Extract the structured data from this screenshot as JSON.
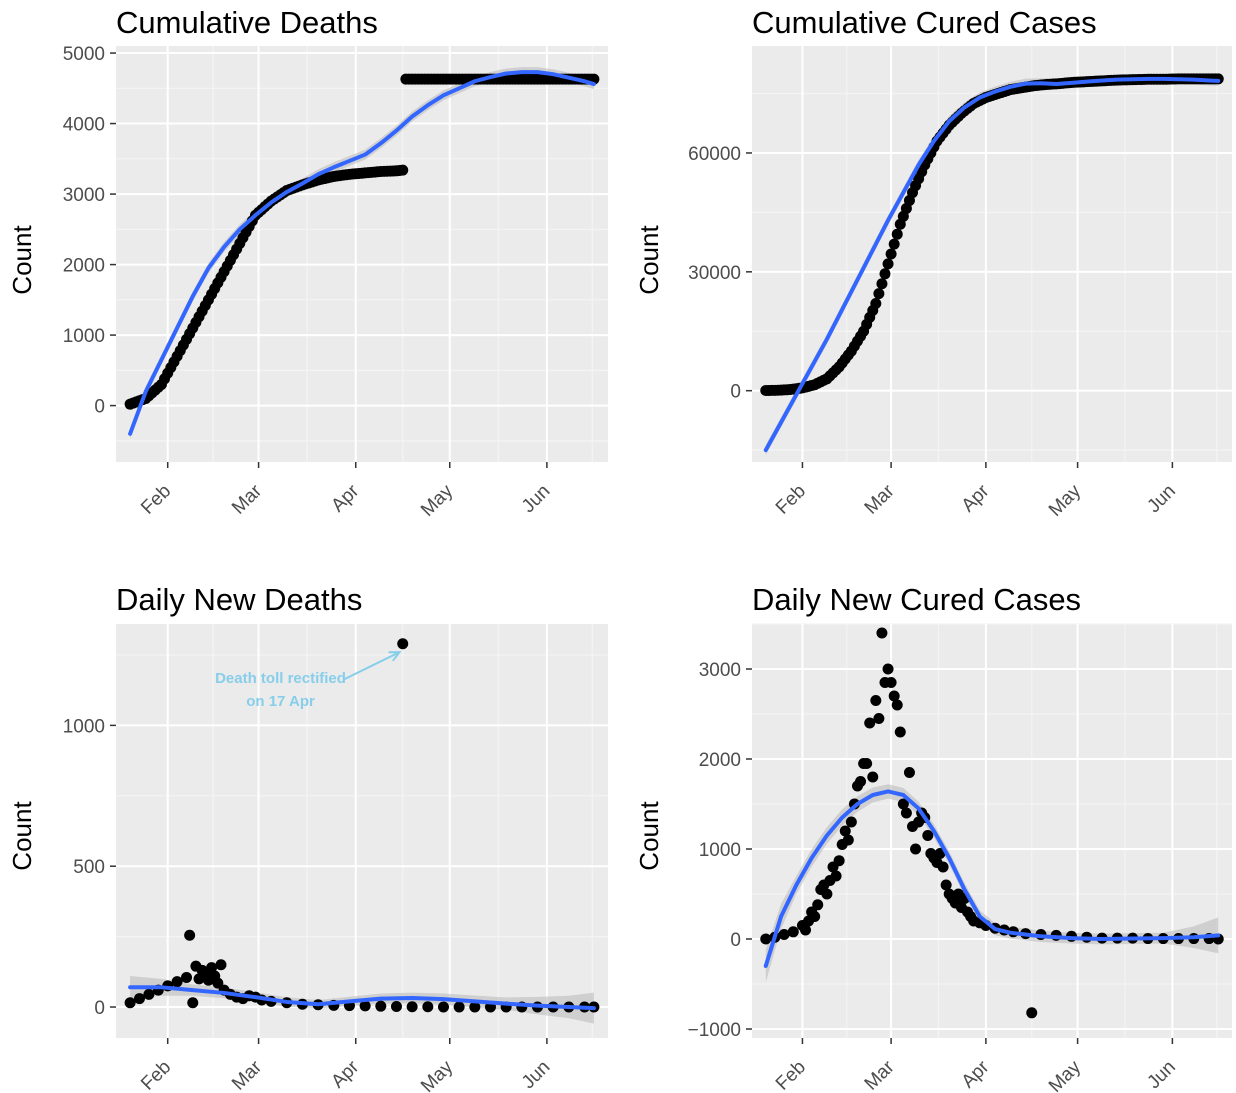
{
  "colors": {
    "panel_background": "#ebebeb",
    "grid_major": "#ffffff",
    "grid_minor": "#f4f4f4",
    "points": "#000000",
    "smooth_line": "#3366ff",
    "confidence_band": "#bdbdbd",
    "annotation": "#87ceeb",
    "tick_text": "#4d4d4d"
  },
  "x_axis_note": "x values are days from 20 Jan 2020; ticks at first of each month",
  "chart_data": [
    {
      "type": "scatter",
      "title": "Cumulative Deaths",
      "ylabel": "Count",
      "xlabel": "",
      "xticks": [
        {
          "label": "Feb",
          "x": 12
        },
        {
          "label": "Mar",
          "x": 41
        },
        {
          "label": "Apr",
          "x": 72
        },
        {
          "label": "May",
          "x": 102
        },
        {
          "label": "Jun",
          "x": 133
        }
      ],
      "xlim": [
        -4.5,
        152.5
      ],
      "ylim": [
        -800,
        5100
      ],
      "yticks": [
        0,
        1000,
        2000,
        3000,
        4000,
        5000
      ],
      "grid": true,
      "points": {
        "x": [
          0,
          5,
          10,
          15,
          20,
          25,
          30,
          35,
          40,
          45,
          50,
          55,
          60,
          65,
          70,
          75,
          80,
          85,
          87,
          88,
          95,
          100,
          105,
          110,
          115,
          120,
          125,
          130,
          135,
          140,
          145,
          148
        ],
        "y": [
          20,
          100,
          300,
          700,
          1100,
          1500,
          1900,
          2300,
          2700,
          2900,
          3050,
          3130,
          3200,
          3250,
          3280,
          3300,
          3320,
          3330,
          3340,
          4630,
          4630,
          4630,
          4630,
          4630,
          4630,
          4630,
          4630,
          4630,
          4630,
          4630,
          4630,
          4630
        ]
      },
      "smooth": {
        "x": [
          0,
          5,
          10,
          15,
          20,
          25,
          30,
          35,
          40,
          45,
          50,
          55,
          60,
          65,
          70,
          75,
          80,
          85,
          90,
          95,
          100,
          105,
          110,
          115,
          120,
          125,
          130,
          135,
          140,
          145,
          148
        ],
        "y": [
          -400,
          200,
          650,
          1100,
          1550,
          1950,
          2250,
          2500,
          2700,
          2880,
          3030,
          3150,
          3280,
          3380,
          3470,
          3560,
          3720,
          3900,
          4100,
          4260,
          4400,
          4500,
          4600,
          4660,
          4710,
          4730,
          4730,
          4700,
          4650,
          4600,
          4560
        ]
      }
    },
    {
      "type": "scatter",
      "title": "Cumulative Cured Cases",
      "ylabel": "Count",
      "xlabel": "",
      "xticks": [
        {
          "label": "Feb",
          "x": 12
        },
        {
          "label": "Mar",
          "x": 41
        },
        {
          "label": "Apr",
          "x": 72
        },
        {
          "label": "May",
          "x": 102
        },
        {
          "label": "Jun",
          "x": 133
        }
      ],
      "xlim": [
        -4.5,
        152.5
      ],
      "ylim": [
        -18000,
        87000
      ],
      "yticks": [
        0,
        30000,
        60000
      ],
      "grid": true,
      "points": {
        "x": [
          0,
          4,
          8,
          12,
          16,
          20,
          24,
          28,
          32,
          36,
          40,
          44,
          48,
          52,
          56,
          60,
          64,
          68,
          72,
          76,
          80,
          84,
          88,
          92,
          96,
          100,
          105,
          110,
          115,
          120,
          125,
          130,
          135,
          140,
          145,
          148
        ],
        "y": [
          50,
          100,
          300,
          700,
          1500,
          3000,
          6000,
          10000,
          15000,
          22000,
          32000,
          42000,
          50000,
          57000,
          63000,
          67000,
          70000,
          72500,
          74000,
          75000,
          76000,
          76500,
          77000,
          77300,
          77500,
          77800,
          78000,
          78200,
          78400,
          78500,
          78600,
          78600,
          78700,
          78700,
          78700,
          78700
        ]
      },
      "smooth": {
        "x": [
          0,
          5,
          10,
          15,
          20,
          25,
          30,
          35,
          40,
          45,
          50,
          55,
          60,
          65,
          70,
          75,
          80,
          85,
          90,
          95,
          100,
          105,
          110,
          115,
          120,
          125,
          130,
          135,
          140,
          145,
          148
        ],
        "y": [
          -15000,
          -8000,
          -1000,
          6000,
          13000,
          20500,
          28000,
          35500,
          43000,
          50000,
          57000,
          63000,
          68000,
          71500,
          74000,
          75500,
          76700,
          77500,
          77600,
          77400,
          77700,
          78000,
          78300,
          78500,
          78600,
          78700,
          78700,
          78600,
          78500,
          78300,
          78200
        ]
      }
    },
    {
      "type": "scatter",
      "title": "Daily New Deaths",
      "ylabel": "Count",
      "xlabel": "",
      "xticks": [
        {
          "label": "Feb",
          "x": 12
        },
        {
          "label": "Mar",
          "x": 41
        },
        {
          "label": "Apr",
          "x": 72
        },
        {
          "label": "May",
          "x": 102
        },
        {
          "label": "Jun",
          "x": 133
        }
      ],
      "xlim": [
        -4.5,
        152.5
      ],
      "ylim": [
        -110,
        1360
      ],
      "yticks": [
        0,
        500,
        1000
      ],
      "grid": true,
      "annotation": {
        "text_line1": "Death toll rectified",
        "text_line2": "on 17 Apr",
        "text_x": 48,
        "text_y": 1150,
        "arrow_to_x": 86,
        "arrow_to_y": 1260
      },
      "points": {
        "x": [
          0,
          3,
          6,
          9,
          12,
          15,
          18,
          19,
          20,
          21,
          22,
          23,
          24,
          25,
          26,
          27,
          28,
          29,
          30,
          32,
          34,
          36,
          38,
          40,
          42,
          45,
          50,
          55,
          60,
          65,
          70,
          75,
          80,
          85,
          87,
          90,
          95,
          100,
          105,
          110,
          115,
          120,
          125,
          130,
          135,
          140,
          145,
          148
        ],
        "y": [
          15,
          30,
          45,
          60,
          75,
          90,
          105,
          255,
          15,
          145,
          100,
          130,
          120,
          95,
          140,
          110,
          85,
          150,
          60,
          45,
          35,
          30,
          40,
          35,
          25,
          20,
          15,
          10,
          8,
          6,
          5,
          4,
          3,
          2,
          1290,
          1,
          1,
          0,
          0,
          0,
          0,
          0,
          0,
          0,
          0,
          0,
          0,
          0
        ]
      },
      "smooth": {
        "x": [
          0,
          10,
          20,
          30,
          40,
          50,
          60,
          70,
          80,
          90,
          100,
          110,
          120,
          130,
          140,
          148
        ],
        "y": [
          70,
          70,
          60,
          50,
          35,
          18,
          10,
          20,
          30,
          32,
          28,
          20,
          12,
          5,
          0,
          -4
        ]
      },
      "band_halfwidth": {
        "x": [
          0,
          20,
          40,
          60,
          80,
          100,
          120,
          140,
          148
        ],
        "y": [
          40,
          20,
          18,
          15,
          18,
          20,
          22,
          40,
          55
        ]
      }
    },
    {
      "type": "scatter",
      "title": "Daily New Cured Cases",
      "ylabel": "Count",
      "xlabel": "",
      "xticks": [
        {
          "label": "Feb",
          "x": 12
        },
        {
          "label": "Mar",
          "x": 41
        },
        {
          "label": "Apr",
          "x": 72
        },
        {
          "label": "May",
          "x": 102
        },
        {
          "label": "Jun",
          "x": 133
        }
      ],
      "xlim": [
        -4.5,
        152.5
      ],
      "ylim": [
        -1100,
        3500
      ],
      "yticks": [
        -1000,
        0,
        1000,
        2000,
        3000
      ],
      "grid": true,
      "points": {
        "x": [
          0,
          3,
          6,
          9,
          12,
          13,
          14,
          15,
          16,
          17,
          18,
          19,
          20,
          21,
          22,
          23,
          24,
          25,
          26,
          27,
          28,
          29,
          30,
          31,
          32,
          33,
          34,
          35,
          36,
          37,
          38,
          39,
          40,
          41,
          42,
          43,
          44,
          45,
          46,
          47,
          48,
          49,
          50,
          51,
          52,
          53,
          54,
          55,
          56,
          57,
          58,
          59,
          60,
          61,
          62,
          63,
          64,
          65,
          66,
          67,
          68,
          70,
          72,
          75,
          78,
          81,
          85,
          87,
          90,
          95,
          100,
          105,
          110,
          115,
          120,
          125,
          130,
          135,
          140,
          145,
          148
        ],
        "y": [
          0,
          20,
          50,
          80,
          150,
          100,
          200,
          300,
          250,
          380,
          550,
          600,
          500,
          650,
          800,
          700,
          870,
          1050,
          1200,
          1100,
          1300,
          1500,
          1700,
          1750,
          1950,
          1950,
          2400,
          1800,
          2650,
          2450,
          3400,
          2850,
          3000,
          2850,
          2700,
          2600,
          2300,
          1500,
          1400,
          1850,
          1250,
          1000,
          1300,
          1400,
          1350,
          1150,
          950,
          900,
          850,
          950,
          800,
          600,
          500,
          450,
          400,
          500,
          350,
          450,
          300,
          250,
          200,
          180,
          150,
          120,
          100,
          80,
          60,
          -820,
          50,
          40,
          30,
          20,
          10,
          10,
          10,
          5,
          5,
          5,
          5,
          5,
          0
        ]
      },
      "smooth": {
        "x": [
          0,
          5,
          10,
          15,
          20,
          25,
          30,
          35,
          40,
          45,
          50,
          55,
          60,
          65,
          70,
          75,
          80,
          85,
          90,
          100,
          110,
          120,
          130,
          140,
          148
        ],
        "y": [
          -300,
          250,
          600,
          900,
          1150,
          1350,
          1500,
          1600,
          1640,
          1600,
          1450,
          1200,
          900,
          550,
          250,
          110,
          70,
          50,
          30,
          10,
          0,
          5,
          10,
          20,
          40
        ]
      },
      "band_halfwidth": {
        "x": [
          0,
          10,
          40,
          70,
          100,
          130,
          140,
          148
        ],
        "y": [
          180,
          100,
          80,
          70,
          60,
          60,
          120,
          200
        ]
      }
    }
  ]
}
